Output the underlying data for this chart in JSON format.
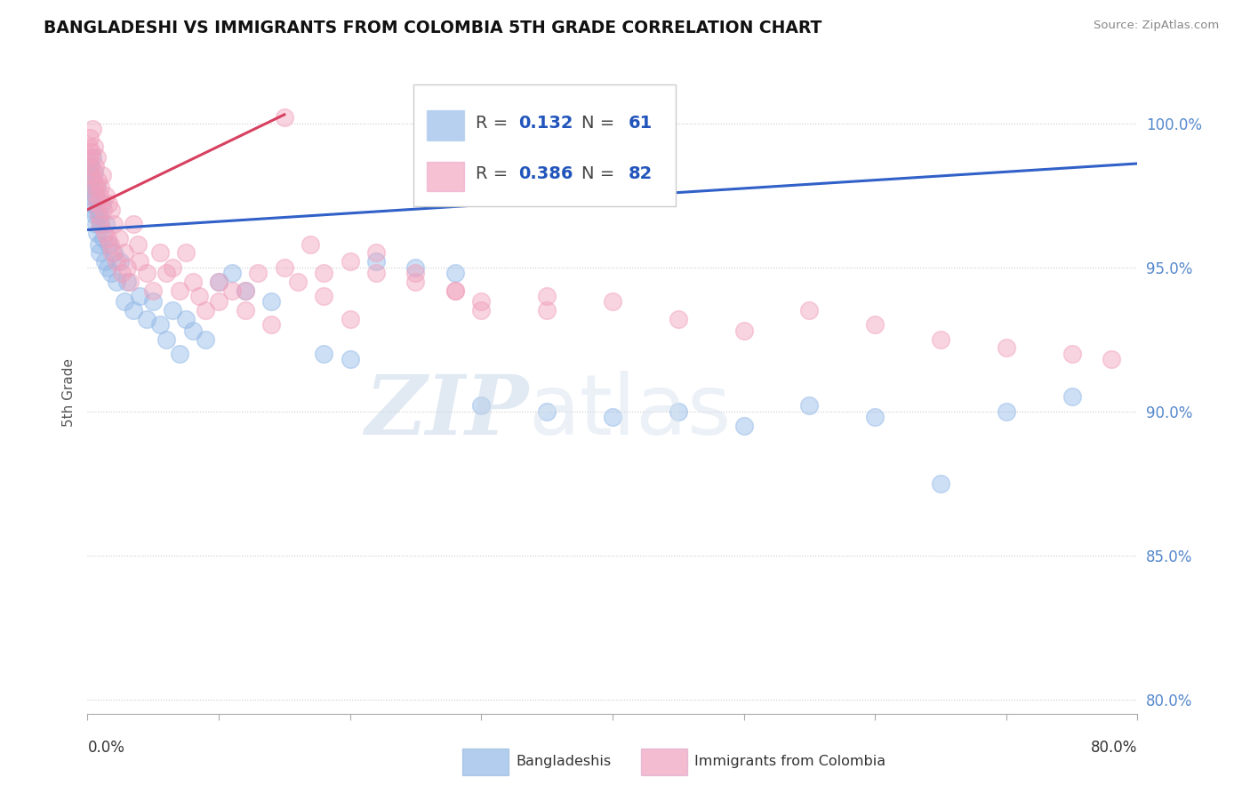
{
  "title": "BANGLADESHI VS IMMIGRANTS FROM COLOMBIA 5TH GRADE CORRELATION CHART",
  "source": "Source: ZipAtlas.com",
  "ylabel": "5th Grade",
  "yticks": [
    80.0,
    85.0,
    90.0,
    95.0,
    100.0
  ],
  "xmin": 0.0,
  "xmax": 80.0,
  "ymin": 79.5,
  "ymax": 101.8,
  "legend_blue_r": "0.132",
  "legend_blue_n": "61",
  "legend_pink_r": "0.386",
  "legend_pink_n": "82",
  "legend_label_blue": "Bangladeshis",
  "legend_label_pink": "Immigrants from Colombia",
  "blue_color": "#92b8e8",
  "pink_color": "#f0a0bc",
  "trendline_blue_color": "#3060c8",
  "trendline_pink_color": "#d84060",
  "watermark_zip": "ZIP",
  "watermark_atlas": "atlas",
  "blue_trendline": [
    0.0,
    80.0,
    96.3,
    98.6
  ],
  "pink_trendline": [
    0.0,
    15.0,
    97.0,
    100.3
  ],
  "blue_scatter_x": [
    0.1,
    0.15,
    0.2,
    0.25,
    0.3,
    0.35,
    0.4,
    0.45,
    0.5,
    0.55,
    0.6,
    0.65,
    0.7,
    0.75,
    0.8,
    0.85,
    0.9,
    0.95,
    1.0,
    1.1,
    1.2,
    1.3,
    1.4,
    1.5,
    1.6,
    1.8,
    2.0,
    2.2,
    2.5,
    2.8,
    3.0,
    3.5,
    4.0,
    4.5,
    5.0,
    5.5,
    6.0,
    6.5,
    7.0,
    7.5,
    8.0,
    9.0,
    10.0,
    11.0,
    12.0,
    14.0,
    18.0,
    20.0,
    22.0,
    25.0,
    28.0,
    30.0,
    35.0,
    40.0,
    45.0,
    50.0,
    55.0,
    60.0,
    65.0,
    70.0,
    75.0
  ],
  "blue_scatter_y": [
    98.2,
    97.8,
    98.5,
    97.5,
    98.0,
    97.2,
    98.8,
    97.0,
    98.3,
    96.8,
    97.5,
    96.5,
    97.8,
    96.2,
    97.0,
    95.8,
    96.8,
    95.5,
    96.5,
    97.2,
    96.0,
    95.2,
    96.5,
    95.0,
    95.8,
    94.8,
    95.5,
    94.5,
    95.2,
    93.8,
    94.5,
    93.5,
    94.0,
    93.2,
    93.8,
    93.0,
    92.5,
    93.5,
    92.0,
    93.2,
    92.8,
    92.5,
    94.5,
    94.8,
    94.2,
    93.8,
    92.0,
    91.8,
    95.2,
    95.0,
    94.8,
    90.2,
    90.0,
    89.8,
    90.0,
    89.5,
    90.2,
    89.8,
    87.5,
    90.0,
    90.5
  ],
  "pink_scatter_x": [
    0.1,
    0.15,
    0.2,
    0.25,
    0.3,
    0.35,
    0.4,
    0.45,
    0.5,
    0.55,
    0.6,
    0.65,
    0.7,
    0.75,
    0.8,
    0.85,
    0.9,
    0.95,
    1.0,
    1.1,
    1.2,
    1.3,
    1.4,
    1.5,
    1.6,
    1.7,
    1.8,
    1.9,
    2.0,
    2.2,
    2.4,
    2.6,
    2.8,
    3.0,
    3.2,
    3.5,
    3.8,
    4.0,
    4.5,
    5.0,
    5.5,
    6.0,
    6.5,
    7.0,
    7.5,
    8.0,
    8.5,
    9.0,
    10.0,
    11.0,
    12.0,
    13.0,
    14.0,
    15.0,
    16.0,
    17.0,
    18.0,
    20.0,
    22.0,
    25.0,
    28.0,
    30.0,
    35.0,
    40.0,
    45.0,
    50.0,
    55.0,
    60.0,
    65.0,
    70.0,
    75.0,
    78.0,
    10.0,
    12.0,
    15.0,
    18.0,
    20.0,
    22.0,
    25.0,
    28.0,
    30.0,
    35.0
  ],
  "pink_scatter_y": [
    99.2,
    98.8,
    99.5,
    98.5,
    99.0,
    98.2,
    99.8,
    98.0,
    99.2,
    97.8,
    98.5,
    97.5,
    98.8,
    97.2,
    98.0,
    96.8,
    97.5,
    96.5,
    97.8,
    98.2,
    97.0,
    96.2,
    97.5,
    96.0,
    97.2,
    95.8,
    97.0,
    95.5,
    96.5,
    95.2,
    96.0,
    94.8,
    95.5,
    95.0,
    94.5,
    96.5,
    95.8,
    95.2,
    94.8,
    94.2,
    95.5,
    94.8,
    95.0,
    94.2,
    95.5,
    94.5,
    94.0,
    93.5,
    93.8,
    94.2,
    93.5,
    94.8,
    93.0,
    100.2,
    94.5,
    95.8,
    94.0,
    93.2,
    95.5,
    94.8,
    94.2,
    93.5,
    94.0,
    93.8,
    93.2,
    92.8,
    93.5,
    93.0,
    92.5,
    92.2,
    92.0,
    91.8,
    94.5,
    94.2,
    95.0,
    94.8,
    95.2,
    94.8,
    94.5,
    94.2,
    93.8,
    93.5
  ]
}
